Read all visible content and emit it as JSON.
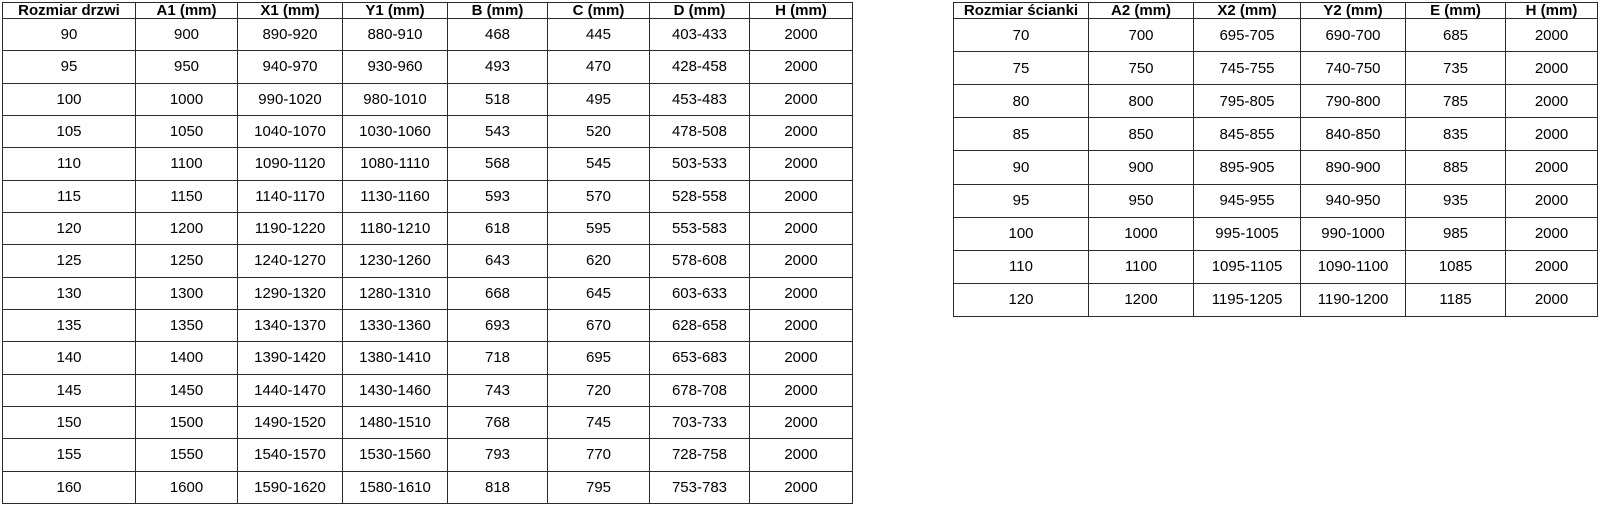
{
  "page": {
    "background_color": "#ffffff",
    "border_color": "#2b2b2b",
    "text_color": "#000000"
  },
  "door_table": {
    "headers": [
      "Rozmiar drzwi",
      "A1 (mm)",
      "X1 (mm)",
      "Y1 (mm)",
      "B (mm)",
      "C (mm)",
      "D (mm)",
      "H (mm)"
    ],
    "rows": [
      [
        "90",
        "900",
        "890-920",
        "880-910",
        "468",
        "445",
        "403-433",
        "2000"
      ],
      [
        "95",
        "950",
        "940-970",
        "930-960",
        "493",
        "470",
        "428-458",
        "2000"
      ],
      [
        "100",
        "1000",
        "990-1020",
        "980-1010",
        "518",
        "495",
        "453-483",
        "2000"
      ],
      [
        "105",
        "1050",
        "1040-1070",
        "1030-1060",
        "543",
        "520",
        "478-508",
        "2000"
      ],
      [
        "110",
        "1100",
        "1090-1120",
        "1080-1110",
        "568",
        "545",
        "503-533",
        "2000"
      ],
      [
        "115",
        "1150",
        "1140-1170",
        "1130-1160",
        "593",
        "570",
        "528-558",
        "2000"
      ],
      [
        "120",
        "1200",
        "1190-1220",
        "1180-1210",
        "618",
        "595",
        "553-583",
        "2000"
      ],
      [
        "125",
        "1250",
        "1240-1270",
        "1230-1260",
        "643",
        "620",
        "578-608",
        "2000"
      ],
      [
        "130",
        "1300",
        "1290-1320",
        "1280-1310",
        "668",
        "645",
        "603-633",
        "2000"
      ],
      [
        "135",
        "1350",
        "1340-1370",
        "1330-1360",
        "693",
        "670",
        "628-658",
        "2000"
      ],
      [
        "140",
        "1400",
        "1390-1420",
        "1380-1410",
        "718",
        "695",
        "653-683",
        "2000"
      ],
      [
        "145",
        "1450",
        "1440-1470",
        "1430-1460",
        "743",
        "720",
        "678-708",
        "2000"
      ],
      [
        "150",
        "1500",
        "1490-1520",
        "1480-1510",
        "768",
        "745",
        "703-733",
        "2000"
      ],
      [
        "155",
        "1550",
        "1540-1570",
        "1530-1560",
        "793",
        "770",
        "728-758",
        "2000"
      ],
      [
        "160",
        "1600",
        "1590-1620",
        "1580-1610",
        "818",
        "795",
        "753-783",
        "2000"
      ]
    ]
  },
  "wall_table": {
    "headers": [
      "Rozmiar ścianki",
      "A2 (mm)",
      "X2 (mm)",
      "Y2 (mm)",
      "E (mm)",
      "H (mm)"
    ],
    "rows": [
      [
        "70",
        "700",
        "695-705",
        "690-700",
        "685",
        "2000"
      ],
      [
        "75",
        "750",
        "745-755",
        "740-750",
        "735",
        "2000"
      ],
      [
        "80",
        "800",
        "795-805",
        "790-800",
        "785",
        "2000"
      ],
      [
        "85",
        "850",
        "845-855",
        "840-850",
        "835",
        "2000"
      ],
      [
        "90",
        "900",
        "895-905",
        "890-900",
        "885",
        "2000"
      ],
      [
        "95",
        "950",
        "945-955",
        "940-950",
        "935",
        "2000"
      ],
      [
        "100",
        "1000",
        "995-1005",
        "990-1000",
        "985",
        "2000"
      ],
      [
        "110",
        "1100",
        "1095-1105",
        "1090-1100",
        "1085",
        "2000"
      ],
      [
        "120",
        "1200",
        "1195-1205",
        "1190-1200",
        "1185",
        "2000"
      ]
    ]
  }
}
